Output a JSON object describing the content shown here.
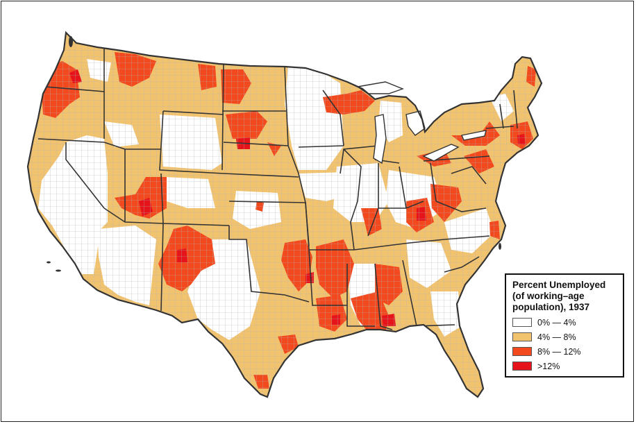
{
  "legend": {
    "title_lines": [
      "Percent Unemployed",
      "(of working–age",
      "population), 1937"
    ],
    "items": [
      {
        "label": "0% — 4%",
        "color": "#ffffff"
      },
      {
        "label": "4% — 8%",
        "color": "#f2c36f"
      },
      {
        "label": "8% — 12%",
        "color": "#f24a1e"
      },
      {
        "label": ">12%",
        "color": "#e5141a"
      }
    ]
  },
  "colors": {
    "background": "#ffffff",
    "outline": "#333333",
    "county_border": "#b0b0b0"
  }
}
